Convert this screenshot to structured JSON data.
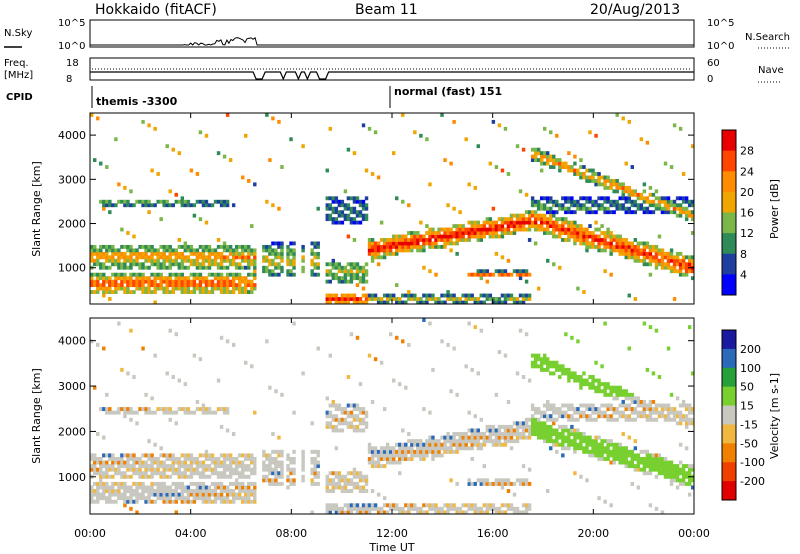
{
  "header": {
    "station": "Hokkaido (fitACF)",
    "beam": "Beam 11",
    "date": "20/Aug/2013"
  },
  "left_labels": {
    "nsky": "N.Sky",
    "freq": "Freq.",
    "freq_unit": "[MHz]",
    "cpid": "CPID"
  },
  "right_labels": {
    "nsearch": "N.Search",
    "nave": "Nave"
  },
  "small_axes": {
    "noise_left": [
      "10^5",
      "10^0"
    ],
    "noise_right": [
      "10^5",
      "10^0"
    ],
    "freq_left": [
      "18",
      "8"
    ],
    "freq_right": [
      "60",
      "0"
    ]
  },
  "cpid": {
    "mode1": "themis -3300",
    "mode2": "normal (fast) 151"
  },
  "colors": {
    "power": [
      "#0000ff",
      "#1e3fa0",
      "#2e8b57",
      "#7ab648",
      "#f0a500",
      "#ff8c00",
      "#ff4500",
      "#e80000"
    ],
    "velocity": [
      "#1a1aa0",
      "#2a6ab8",
      "#27a03a",
      "#78d030",
      "#c8c8c0",
      "#f0b840",
      "#f08000",
      "#f04000",
      "#e00000"
    ]
  },
  "chart_data": [
    {
      "type": "heatmap",
      "name": "power",
      "title": "",
      "xlabel": "",
      "ylabel": "Slant Range [km]",
      "x_ticks": [
        "00:00",
        "04:00",
        "08:00",
        "12:00",
        "16:00",
        "20:00",
        "00:00"
      ],
      "y_ticks": [
        1000,
        2000,
        3000,
        4000
      ],
      "ylim": [
        180,
        4500
      ],
      "colorbar_label": "Power [dB]",
      "colorbar_ticks": [
        4,
        8,
        12,
        16,
        20,
        24,
        28
      ]
    },
    {
      "type": "heatmap",
      "name": "velocity",
      "title": "",
      "xlabel": "Time UT",
      "ylabel": "Slant Range [km]",
      "x_ticks": [
        "00:00",
        "04:00",
        "08:00",
        "12:00",
        "16:00",
        "20:00",
        "00:00"
      ],
      "y_ticks": [
        1000,
        2000,
        3000,
        4000
      ],
      "ylim": [
        180,
        4500
      ],
      "colorbar_label": "Velocity [m s-1]",
      "colorbar_ticks": [
        200,
        100,
        50,
        15,
        -15,
        -50,
        -100,
        -200
      ]
    }
  ]
}
